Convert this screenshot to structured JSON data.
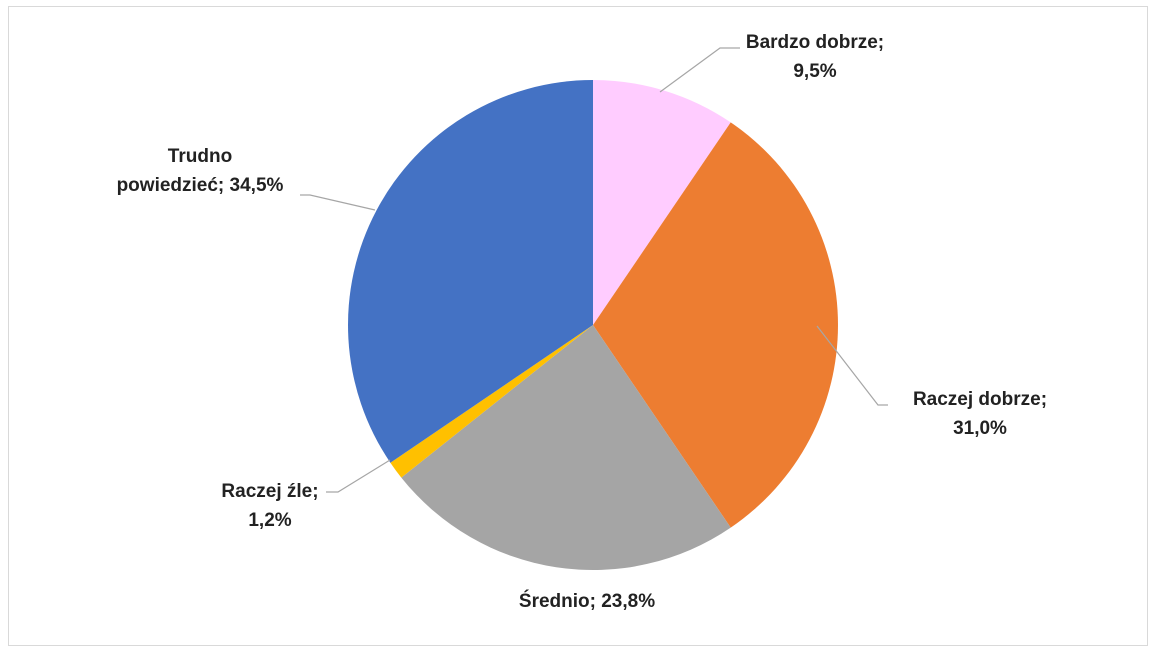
{
  "chart_data": {
    "type": "pie",
    "slices": [
      {
        "name": "Bardzo dobrze",
        "value": 9.5,
        "label_lines": [
          "Bardzo dobrze;",
          "9,5%"
        ],
        "color": "#FFCCFF"
      },
      {
        "name": "Raczej dobrze",
        "value": 31.0,
        "label_lines": [
          "Raczej dobrze;",
          "31,0%"
        ],
        "color": "#ED7D31"
      },
      {
        "name": "Średnio",
        "value": 23.8,
        "label_lines": [
          "Średnio; 23,8%"
        ],
        "color": "#A5A5A5"
      },
      {
        "name": "Raczej źle",
        "value": 1.2,
        "label_lines": [
          "Raczej źle;",
          "1,2%"
        ],
        "color": "#FFC000"
      },
      {
        "name": "Trudno powiedzieć",
        "value": 34.5,
        "label_lines": [
          "Trudno",
          "powiedzieć; 34,5%"
        ],
        "color": "#4472C4"
      }
    ],
    "start_angle": "12 o'clock",
    "direction": "clockwise",
    "legend": "none"
  }
}
